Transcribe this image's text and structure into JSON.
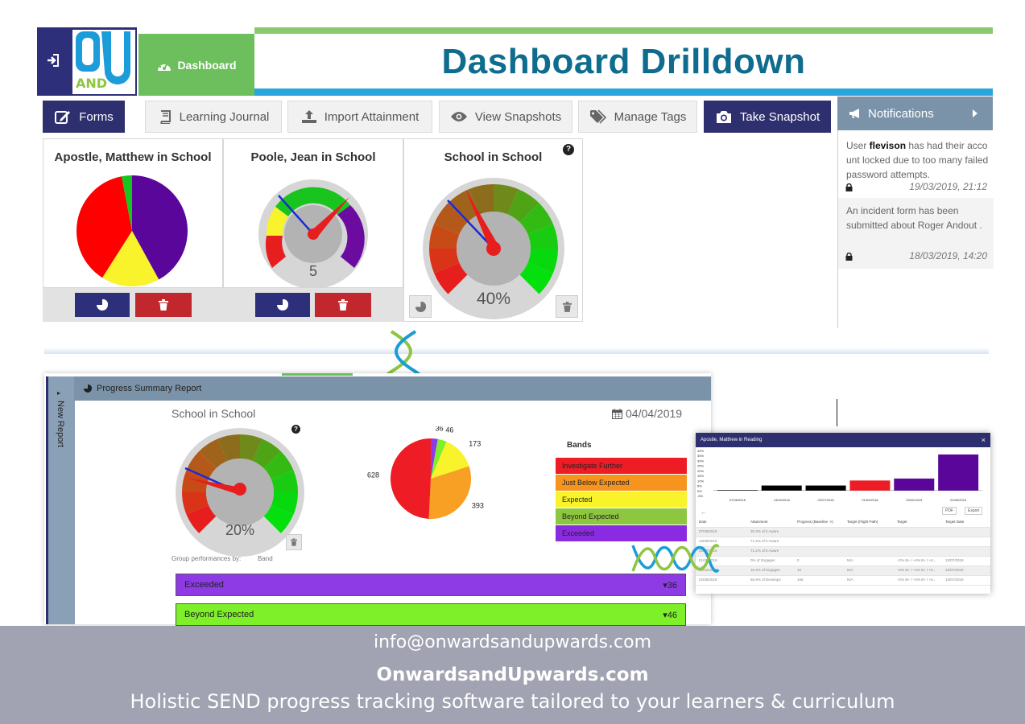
{
  "header": {
    "dashboard_label": "Dashboard",
    "title": "Dashboard Drilldown",
    "logo_text_top": "OU",
    "logo_text_and": "AND"
  },
  "toolbar": [
    {
      "label": "Forms",
      "icon": "edit-icon",
      "style": "dark"
    },
    {
      "label": "Learning Journal",
      "icon": "book-icon",
      "style": "light"
    },
    {
      "label": "Import Attainment",
      "icon": "upload-icon",
      "style": "light"
    },
    {
      "label": "View Snapshots",
      "icon": "eye-icon",
      "style": "light"
    },
    {
      "label": "Manage Tags",
      "icon": "tags-icon",
      "style": "light"
    },
    {
      "label": "Take Snapshot",
      "icon": "camera-icon",
      "style": "dark"
    }
  ],
  "widgets": {
    "pie_panel": {
      "title": "Apostle, Matthew in School"
    },
    "gauge_small": {
      "title": "Poole, Jean in School",
      "value_text": "5"
    },
    "gauge_big": {
      "title": "School in School",
      "value_text": "40%"
    }
  },
  "notifications": {
    "title": "Notifications",
    "items": [
      {
        "pre": "User ",
        "user": "flevison",
        "post": " has had their acco unt locked due to too many failed password attempts.",
        "date": "19/03/2019, 21:12"
      },
      {
        "pre": "An incident form has been submitted about Roger Andout",
        "user": "",
        "post": " .",
        "date": "18/03/2019, 14:20"
      }
    ]
  },
  "report": {
    "side_label": "New Report",
    "header": "Progress Summary Report",
    "subtitle": "School in School",
    "date": "04/04/2019",
    "gauge_value": "20%",
    "group_label": "Group performances by:",
    "group_value": "Band",
    "pie_labels": [
      "36",
      "46",
      "173",
      "393",
      "628"
    ],
    "bands_title": "Bands",
    "bands": [
      {
        "label": "Investigate Further",
        "color": "#ee1c25"
      },
      {
        "label": "Just Below Expected",
        "color": "#f7941d"
      },
      {
        "label": "Expected",
        "color": "#f8f32b"
      },
      {
        "label": "Beyond Expected",
        "color": "#8dc63f"
      },
      {
        "label": "Exceeded",
        "color": "#8a2be2"
      }
    ],
    "groups": [
      {
        "label": "Exceeded",
        "count": "36",
        "color": "#8e3be6"
      },
      {
        "label": "Beyond Expected",
        "count": "46",
        "color": "#7df02a"
      }
    ]
  },
  "mini_window": {
    "title": "Apostle, Matthew in Reading",
    "close": "×",
    "y_ticks": [
      "40%",
      "35%",
      "30%",
      "25%",
      "20%",
      "15%",
      "10%",
      "5%",
      "0%",
      "-5%"
    ],
    "x_labels": [
      "07/08/2018",
      "13/09/2018",
      "02/07/2018",
      "01/09/2018",
      "25/02/2019",
      "02/05/2019"
    ],
    "pdf": "PDF",
    "export": "Export",
    "columns": [
      "Date",
      "Attainment",
      "Progress (Baseline ->)",
      "Target (Flight Path)",
      "Target",
      "Target Date"
    ],
    "rows": [
      [
        "07/08/2018",
        "30.3% of b Aware",
        "",
        "",
        "",
        ""
      ],
      [
        "13/09/2018",
        "71.2% of b Aware",
        "",
        "",
        "",
        ""
      ],
      [
        "02/07/2018",
        "71.2% of b Aware",
        "",
        "",
        "",
        ""
      ],
      [
        "01/09/2018",
        "0% of Engages",
        "0",
        "N/A",
        "+2% B+ / +4% B+ / +6...",
        "13/07/2019"
      ],
      [
        "25/02/2019",
        "10.4% of Engages",
        "10",
        "N/A",
        "+2% B+ / +4% B+ / +6...",
        "13/07/2019"
      ],
      [
        "02/05/2019",
        "66.9% of Develops",
        "166",
        "N/A",
        "+2% B+ / +4% B+ / +6...",
        "13/07/2019"
      ]
    ]
  },
  "chart_data": [
    {
      "type": "pie",
      "title": "Apostle, Matthew in School",
      "values": [
        42,
        17,
        38,
        3
      ],
      "colors": [
        "#5b069b",
        "#f8f32b",
        "#ff0000",
        "#19c41e"
      ]
    },
    {
      "type": "pie",
      "title": "",
      "categories": [
        "36",
        "46",
        "173",
        "393",
        "628"
      ],
      "values": [
        36,
        46,
        173,
        393,
        628
      ],
      "colors": [
        "#8e3be6",
        "#7df02a",
        "#f8f32b",
        "#f7a023",
        "#ee1c25"
      ]
    },
    {
      "type": "bar",
      "title": "Apostle, Matthew in Reading",
      "categories": [
        "07/08/2018",
        "13/09/2018",
        "02/07/2018",
        "01/09/2018",
        "25/02/2019",
        "02/05/2019"
      ],
      "values": [
        0,
        5,
        5,
        10,
        12,
        36
      ],
      "colors": [
        "#000000",
        "#000000",
        "#000000",
        "#ee1c25",
        "#5b069b",
        "#5b069b"
      ],
      "ylim": [
        -5,
        40
      ]
    }
  ]
}
